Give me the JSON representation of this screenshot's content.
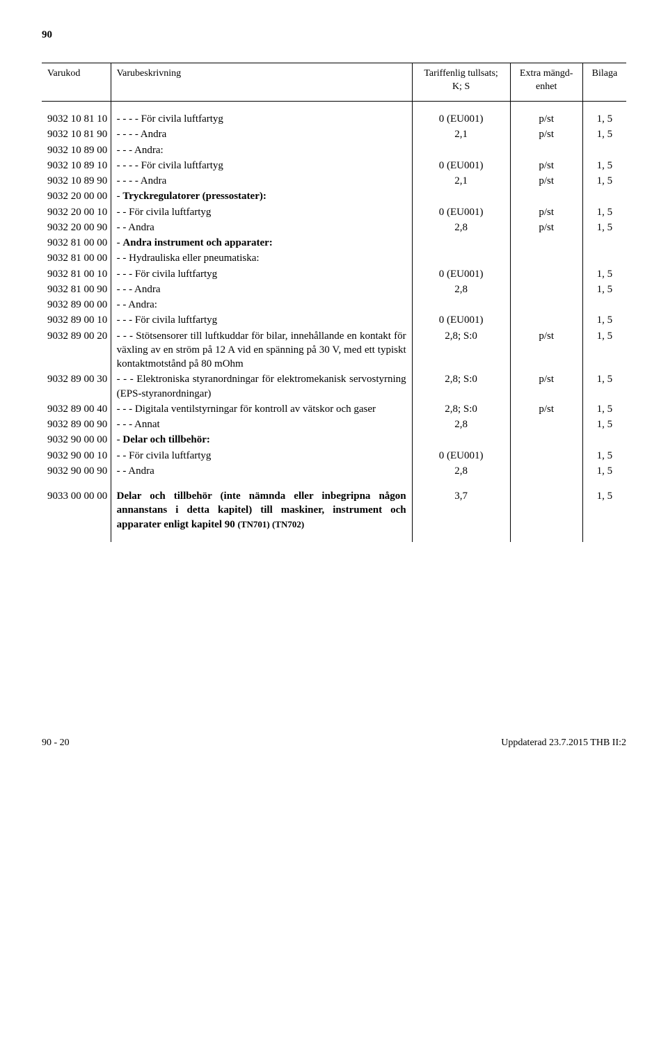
{
  "page_number_top": "90",
  "header": {
    "col1": "Varukod",
    "col2": "Varubeskrivning",
    "col3_line1": "Tariffenlig tullsats;",
    "col3_line2": "K; S",
    "col4_line1": "Extra mängd-",
    "col4_line2": "enhet",
    "col5": "Bilaga"
  },
  "rows": [
    {
      "code": "9032 10 81 10",
      "desc": "- - - -  För civila luftfartyg",
      "c3": "0 (EU001)",
      "c4": "p/st",
      "c5": "1, 5"
    },
    {
      "code": "9032 10 81 90",
      "desc": "- - - -  Andra",
      "c3": "2,1",
      "c4": "p/st",
      "c5": "1, 5"
    },
    {
      "code": "9032 10 89 00",
      "desc": "- - -  Andra:",
      "c3": "",
      "c4": "",
      "c5": ""
    },
    {
      "code": "9032 10 89 10",
      "desc": "- - - -  För civila luftfartyg",
      "c3": "0 (EU001)",
      "c4": "p/st",
      "c5": "1, 5"
    },
    {
      "code": "9032 10 89 90",
      "desc": "- - - -  Andra",
      "c3": "2,1",
      "c4": "p/st",
      "c5": "1, 5"
    },
    {
      "code": "9032 20 00 00",
      "desc": "-  <span class=\"bold\">Tryckregulatorer (pressostater):</span>",
      "c3": "",
      "c4": "",
      "c5": ""
    },
    {
      "code": "9032 20 00 10",
      "desc": "- -  För civila luftfartyg",
      "c3": "0 (EU001)",
      "c4": "p/st",
      "c5": "1, 5"
    },
    {
      "code": "9032 20 00 90",
      "desc": "- -  Andra",
      "c3": "2,8",
      "c4": "p/st",
      "c5": "1, 5"
    },
    {
      "code": "9032 81 00 00",
      "desc": "-  <span class=\"bold\">Andra instrument och apparater:</span>",
      "c3": "",
      "c4": "",
      "c5": ""
    },
    {
      "code": "9032 81 00 00",
      "desc": "- -  Hydrauliska eller pneumatiska:",
      "c3": "",
      "c4": "",
      "c5": ""
    },
    {
      "code": "9032 81 00 10",
      "desc": "- - -  För civila luftfartyg",
      "c3": "0 (EU001)",
      "c4": "",
      "c5": "1, 5"
    },
    {
      "code": "9032 81 00 90",
      "desc": "- - -  Andra",
      "c3": "2,8",
      "c4": "",
      "c5": "1, 5"
    },
    {
      "code": "9032 89 00 00",
      "desc": "- -  Andra:",
      "c3": "",
      "c4": "",
      "c5": ""
    },
    {
      "code": "9032 89 00 10",
      "desc": "- - -  För civila luftfartyg",
      "c3": "0 (EU001)",
      "c4": "",
      "c5": "1, 5"
    },
    {
      "code": "9032 89 00 20",
      "desc": "- - -  Stötsensorer till luftkuddar för bilar, innehållande en kontakt för växling av en ström på 12 A vid en spänning på 30 V, med ett typiskt kontaktmotstånd på 80 mOhm",
      "c3": "2,8; S:0",
      "c4": "p/st",
      "c5": "1, 5"
    },
    {
      "code": "9032 89 00 30",
      "desc": "- - -  Elektroniska styranordningar för elektromekanisk servostyrning (EPS-styranordningar)",
      "c3": "2,8; S:0",
      "c4": "p/st",
      "c5": "1, 5"
    },
    {
      "code": "9032 89 00 40",
      "desc": "- - -  Digitala ventilstyrningar för kontroll av vätskor och gaser",
      "c3": "2,8; S:0",
      "c4": "p/st",
      "c5": "1, 5"
    },
    {
      "code": "9032 89 00 90",
      "desc": "- - -  Annat",
      "c3": "2,8",
      "c4": "",
      "c5": "1, 5"
    },
    {
      "code": "9032 90 00 00",
      "desc": "-  <span class=\"bold\">Delar och tillbehör:</span>",
      "c3": "",
      "c4": "",
      "c5": ""
    },
    {
      "code": "9032 90 00 10",
      "desc": "- -  För civila luftfartyg",
      "c3": "0 (EU001)",
      "c4": "",
      "c5": "1, 5"
    },
    {
      "code": "9032 90 00 90",
      "desc": "- -  Andra",
      "c3": "2,8",
      "c4": "",
      "c5": "1, 5"
    }
  ],
  "group2": {
    "code": "9033 00 00 00",
    "desc": "<span class=\"bold\">Delar och tillbehör (inte nämnda eller inbegripna någon annanstans i detta kapitel) till maskiner, instrument och apparater enligt kapitel 90 <span class=\"small\">(TN701) (TN702)</span></span>",
    "c3": "3,7",
    "c4": "",
    "c5": "1, 5"
  },
  "footer": {
    "left": "90 - 20",
    "right": "Uppdaterad 23.7.2015 THB II:2"
  }
}
